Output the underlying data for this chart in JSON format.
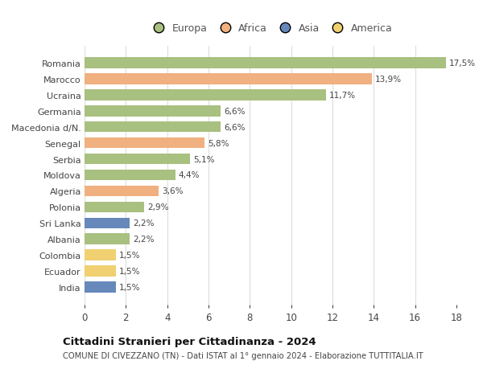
{
  "categories": [
    "Romania",
    "Marocco",
    "Ucraina",
    "Germania",
    "Macedonia d/N.",
    "Senegal",
    "Serbia",
    "Moldova",
    "Algeria",
    "Polonia",
    "Sri Lanka",
    "Albania",
    "Colombia",
    "Ecuador",
    "India"
  ],
  "values": [
    17.5,
    13.9,
    11.7,
    6.6,
    6.6,
    5.8,
    5.1,
    4.4,
    3.6,
    2.9,
    2.2,
    2.2,
    1.5,
    1.5,
    1.5
  ],
  "labels": [
    "17,5%",
    "13,9%",
    "11,7%",
    "6,6%",
    "6,6%",
    "5,8%",
    "5,1%",
    "4,4%",
    "3,6%",
    "2,9%",
    "2,2%",
    "2,2%",
    "1,5%",
    "1,5%",
    "1,5%"
  ],
  "continents": [
    "Europa",
    "Africa",
    "Europa",
    "Europa",
    "Europa",
    "Africa",
    "Europa",
    "Europa",
    "Africa",
    "Europa",
    "Asia",
    "Europa",
    "America",
    "America",
    "Asia"
  ],
  "continent_colors": {
    "Europa": "#a8c080",
    "Africa": "#f0b080",
    "Asia": "#6688bb",
    "America": "#f0d070"
  },
  "legend_entries": [
    "Europa",
    "Africa",
    "Asia",
    "America"
  ],
  "legend_colors": [
    "#a8c080",
    "#f0b080",
    "#6688bb",
    "#f0d070"
  ],
  "title": "Cittadini Stranieri per Cittadinanza - 2024",
  "subtitle": "COMUNE DI CIVEZZANO (TN) - Dati ISTAT al 1° gennaio 2024 - Elaborazione TUTTITALIA.IT",
  "xlim": [
    0,
    18
  ],
  "xticks": [
    0,
    2,
    4,
    6,
    8,
    10,
    12,
    14,
    16,
    18
  ],
  "background_color": "#ffffff",
  "grid_color": "#dddddd",
  "bar_height": 0.68,
  "figsize": [
    6.0,
    4.6
  ],
  "dpi": 100
}
